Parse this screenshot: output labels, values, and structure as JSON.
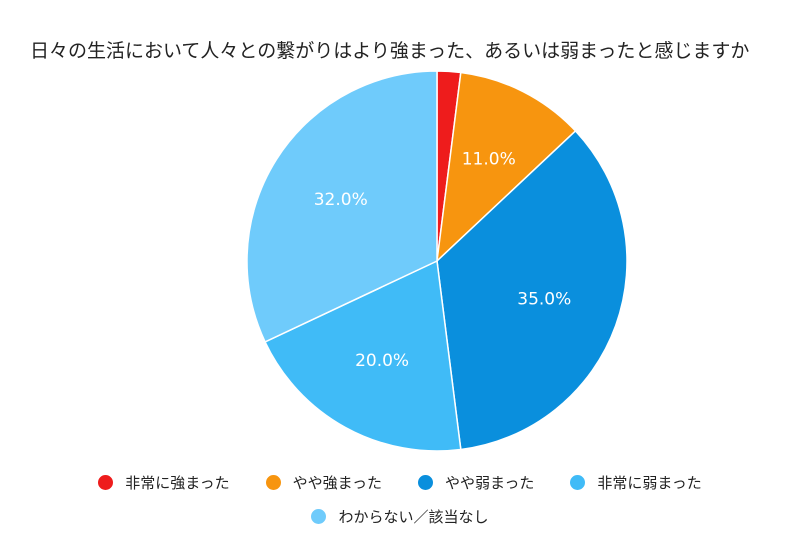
{
  "chart_data": {
    "type": "pie",
    "title": "日々の生活において人々との繋がりはより強まった、あるいは弱まったと感じますか",
    "start": "top",
    "direction": "clockwise",
    "legend_position": "bottom",
    "slices": [
      {
        "name": "非常に強まった",
        "value": 2.0,
        "color": "#ee1c1c",
        "label": ""
      },
      {
        "name": "やや強まった",
        "value": 11.0,
        "color": "#f7950f",
        "label": "11.0%"
      },
      {
        "name": "やや弱まった",
        "value": 35.0,
        "color": "#0a8fdd",
        "label": "35.0%"
      },
      {
        "name": "非常に弱まった",
        "value": 20.0,
        "color": "#40bbf7",
        "label": "20.0%"
      },
      {
        "name": "わからない／該当なし",
        "value": 32.0,
        "color": "#6fcbfb",
        "label": "32.0%"
      }
    ]
  }
}
